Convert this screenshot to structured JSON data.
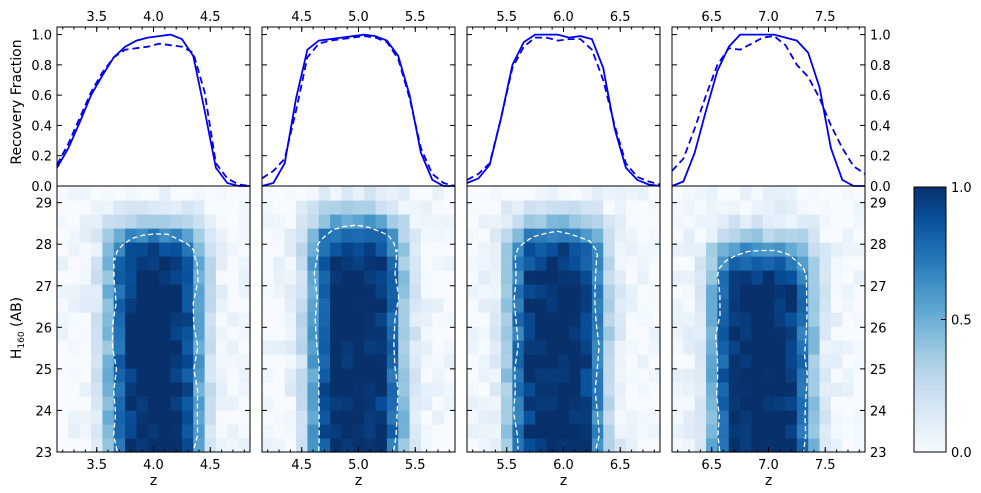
{
  "chart_data": {
    "type": "line+heatmap",
    "labels": {
      "top_ylabel": "Recovery Fraction",
      "bottom_ylabel_main": "H",
      "bottom_ylabel_sub": "160",
      "bottom_ylabel_tail": " (AB)",
      "xlabel": "z"
    },
    "top_ylim": [
      0.0,
      1.05
    ],
    "top_yticks": [
      "0.0",
      "0.2",
      "0.4",
      "0.6",
      "0.8",
      "1.0"
    ],
    "bottom_ylim": [
      23.0,
      29.4
    ],
    "bottom_yticks": [
      "23",
      "24",
      "25",
      "26",
      "27",
      "28",
      "29"
    ],
    "colorbar": {
      "min": 0.0,
      "max": 1.0,
      "ticks": [
        "0.0",
        "0.5",
        "1.0"
      ],
      "colormap": "Blues"
    },
    "line_color": "#0000ee",
    "panels": [
      {
        "z0": 4.0,
        "xlim": [
          3.15,
          4.85
        ],
        "xticks": [
          "3.5",
          "4.0",
          "4.5"
        ],
        "solid": {
          "x": [
            3.15,
            3.25,
            3.35,
            3.45,
            3.55,
            3.65,
            3.75,
            3.85,
            3.95,
            4.05,
            4.15,
            4.25,
            4.35,
            4.45,
            4.55,
            4.65,
            4.75,
            4.85
          ],
          "y": [
            0.12,
            0.25,
            0.42,
            0.6,
            0.73,
            0.85,
            0.92,
            0.96,
            0.98,
            0.99,
            1.0,
            0.97,
            0.86,
            0.5,
            0.12,
            0.02,
            0.0,
            0.0
          ]
        },
        "dashed": {
          "x": [
            3.15,
            3.25,
            3.35,
            3.45,
            3.55,
            3.65,
            3.75,
            3.85,
            3.95,
            4.05,
            4.15,
            4.25,
            4.35,
            4.45,
            4.55,
            4.65,
            4.75,
            4.85
          ],
          "y": [
            0.14,
            0.28,
            0.45,
            0.62,
            0.75,
            0.85,
            0.9,
            0.91,
            0.92,
            0.94,
            0.93,
            0.92,
            0.88,
            0.62,
            0.15,
            0.05,
            0.01,
            0.0
          ]
        },
        "contour_top": 28.25,
        "contour_left": 3.66,
        "contour_right": 4.37
      },
      {
        "z0": 5.0,
        "xlim": [
          4.15,
          5.85
        ],
        "xticks": [
          "4.5",
          "5.0",
          "5.5"
        ],
        "solid": {
          "x": [
            4.15,
            4.25,
            4.35,
            4.45,
            4.55,
            4.65,
            4.75,
            4.85,
            4.95,
            5.05,
            5.15,
            5.25,
            5.35,
            5.45,
            5.55,
            5.65,
            5.75,
            5.85
          ],
          "y": [
            0.0,
            0.02,
            0.15,
            0.58,
            0.9,
            0.96,
            0.97,
            0.98,
            0.99,
            1.0,
            0.99,
            0.96,
            0.86,
            0.6,
            0.22,
            0.04,
            0.0,
            0.0
          ]
        },
        "dashed": {
          "x": [
            4.15,
            4.25,
            4.35,
            4.45,
            4.55,
            4.65,
            4.75,
            4.85,
            4.95,
            5.05,
            5.15,
            5.25,
            5.35,
            5.45,
            5.55,
            5.65,
            5.75,
            5.85
          ],
          "y": [
            0.05,
            0.1,
            0.18,
            0.5,
            0.85,
            0.94,
            0.96,
            0.97,
            0.98,
            0.99,
            0.98,
            0.95,
            0.84,
            0.58,
            0.25,
            0.08,
            0.02,
            0.0
          ]
        },
        "contour_top": 28.45,
        "contour_left": 4.63,
        "contour_right": 5.33
      },
      {
        "z0": 6.0,
        "xlim": [
          5.15,
          6.85
        ],
        "xticks": [
          "5.5",
          "6.0",
          "6.5"
        ],
        "solid": {
          "x": [
            5.15,
            5.25,
            5.35,
            5.45,
            5.55,
            5.65,
            5.75,
            5.85,
            5.95,
            6.05,
            6.15,
            6.25,
            6.35,
            6.45,
            6.55,
            6.65,
            6.75,
            6.85
          ],
          "y": [
            0.02,
            0.05,
            0.14,
            0.45,
            0.8,
            0.95,
            1.0,
            1.0,
            1.0,
            0.98,
            0.99,
            0.97,
            0.78,
            0.38,
            0.12,
            0.04,
            0.01,
            0.0
          ]
        },
        "dashed": {
          "x": [
            5.15,
            5.25,
            5.35,
            5.45,
            5.55,
            5.65,
            5.75,
            5.85,
            5.95,
            6.05,
            6.15,
            6.25,
            6.35,
            6.45,
            6.55,
            6.65,
            6.75,
            6.85
          ],
          "y": [
            0.04,
            0.08,
            0.15,
            0.45,
            0.78,
            0.92,
            0.98,
            0.98,
            0.96,
            0.97,
            0.97,
            0.9,
            0.7,
            0.4,
            0.15,
            0.06,
            0.03,
            0.01
          ]
        },
        "contour_top": 28.3,
        "contour_left": 5.58,
        "contour_right": 6.3
      },
      {
        "z0": 7.0,
        "xlim": [
          6.15,
          7.85
        ],
        "xticks": [
          "6.5",
          "7.0",
          "7.5"
        ],
        "solid": {
          "x": [
            6.15,
            6.25,
            6.35,
            6.45,
            6.55,
            6.65,
            6.75,
            6.85,
            6.95,
            7.05,
            7.15,
            7.25,
            7.35,
            7.45,
            7.55,
            7.65,
            7.75,
            7.85
          ],
          "y": [
            0.0,
            0.03,
            0.22,
            0.5,
            0.76,
            0.92,
            1.0,
            1.0,
            1.0,
            1.0,
            0.98,
            0.96,
            0.88,
            0.65,
            0.25,
            0.04,
            0.0,
            0.0
          ]
        },
        "dashed": {
          "x": [
            6.15,
            6.25,
            6.35,
            6.45,
            6.55,
            6.65,
            6.75,
            6.85,
            6.95,
            7.05,
            7.15,
            7.25,
            7.35,
            7.45,
            7.55,
            7.65,
            7.75,
            7.85
          ],
          "y": [
            0.1,
            0.18,
            0.38,
            0.6,
            0.8,
            0.91,
            0.9,
            0.94,
            0.98,
            0.99,
            0.93,
            0.8,
            0.72,
            0.58,
            0.4,
            0.25,
            0.13,
            0.08
          ]
        },
        "contour_top": 27.85,
        "contour_left": 6.55,
        "contour_right": 7.33
      }
    ]
  }
}
